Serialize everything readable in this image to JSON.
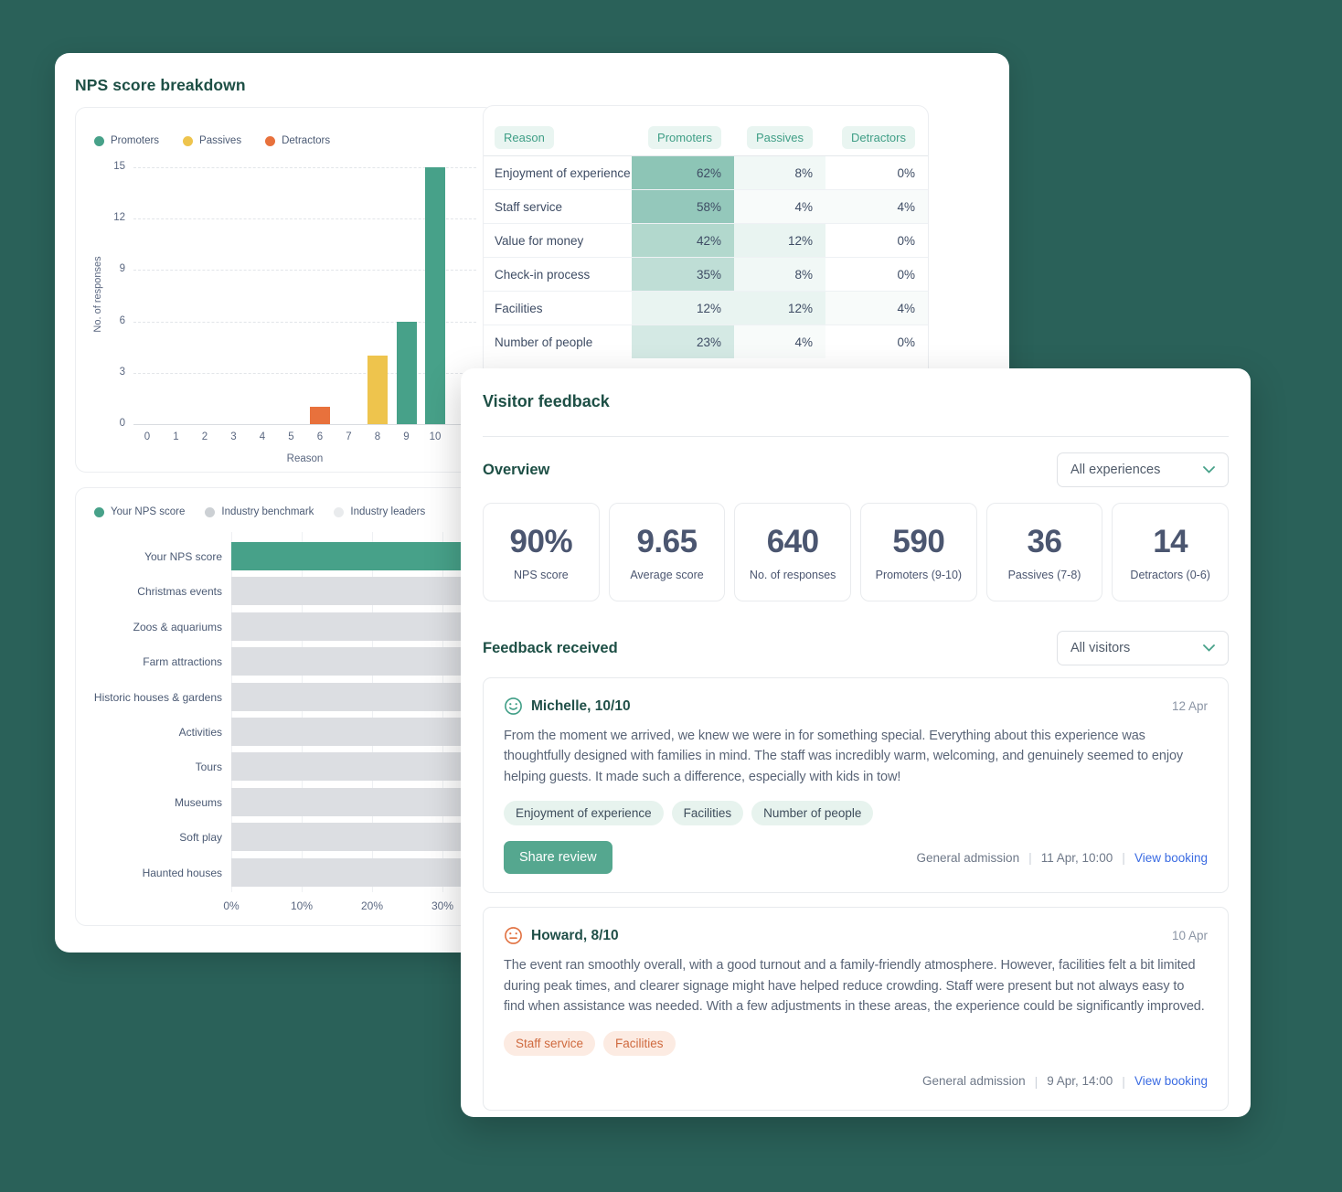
{
  "colors": {
    "background": "#2a6159",
    "heading": "#1d4f45",
    "promoters": "#47a189",
    "passives": "#eec44d",
    "detractors": "#e8713c",
    "benchmark_bar": "#dcdee2",
    "table_cell_base_rgb": "71,161,137",
    "link": "#3a6be2",
    "share_button": "#55a78f"
  },
  "nps_card": {
    "title": "NPS score breakdown"
  },
  "chart_data": [
    {
      "id": "nps_breakdown",
      "type": "bar",
      "title": "",
      "xlabel": "Reason",
      "ylabel": "No. of responses",
      "xticks": [
        "0",
        "1",
        "2",
        "3",
        "4",
        "5",
        "6",
        "7",
        "8",
        "9",
        "10"
      ],
      "yticks": [
        15,
        12,
        9,
        6,
        3,
        0
      ],
      "ylim": [
        0,
        15
      ],
      "values": [
        0,
        0,
        0,
        0,
        0,
        0,
        1,
        0,
        4,
        6,
        15
      ],
      "colors_by_x": {
        "6": "#e8713c",
        "8": "#eec44d",
        "9": "#47a189",
        "10": "#47a189"
      },
      "legend": [
        {
          "label": "Promoters",
          "color": "#47a189"
        },
        {
          "label": "Passives",
          "color": "#eec44d"
        },
        {
          "label": "Detractors",
          "color": "#e8713c"
        }
      ],
      "grid": "dashed horizontal"
    },
    {
      "id": "industry_benchmark",
      "type": "bar-horizontal",
      "title": "",
      "xticks": [
        "0%",
        "10%",
        "20%",
        "30%"
      ],
      "categories": [
        "Your NPS score",
        "Christmas events",
        "Zoos & aquariums",
        "Farm attractions",
        "Historic houses & gardens",
        "Activities",
        "Tours",
        "Museums",
        "Soft play",
        "Haunted houses"
      ],
      "legend": [
        {
          "label": "Your NPS score",
          "color": "#47a189"
        },
        {
          "label": "Industry benchmark",
          "color": "#ccd0d4"
        },
        {
          "label": "Industry leaders",
          "color": "#e9ebed"
        }
      ],
      "bar_color_default": "#dcdee2",
      "note": "all bars extend past 30% and are clipped by the overlapping Visitor feedback card"
    }
  ],
  "table": {
    "columns": [
      "Reason",
      "Promoters",
      "Passives",
      "Detractors"
    ],
    "rows": [
      {
        "reason": "Enjoyment of experience",
        "promoters": 62,
        "passives": 8,
        "detractors": 0
      },
      {
        "reason": "Staff service",
        "promoters": 58,
        "passives": 4,
        "detractors": 4
      },
      {
        "reason": "Value for money",
        "promoters": 42,
        "passives": 12,
        "detractors": 0
      },
      {
        "reason": "Check-in process",
        "promoters": 35,
        "passives": 8,
        "detractors": 0
      },
      {
        "reason": "Facilities",
        "promoters": 12,
        "passives": 12,
        "detractors": 4
      },
      {
        "reason": "Number of people",
        "promoters": 23,
        "passives": 4,
        "detractors": 0
      }
    ]
  },
  "feedback_panel": {
    "title": "Visitor feedback",
    "overview_heading": "Overview",
    "experiences_dropdown": "All experiences",
    "stats": [
      {
        "value": "90%",
        "label": "NPS score"
      },
      {
        "value": "9.65",
        "label": "Average score"
      },
      {
        "value": "640",
        "label": "No. of responses"
      },
      {
        "value": "590",
        "label": "Promoters (9-10)"
      },
      {
        "value": "36",
        "label": "Passives (7-8)"
      },
      {
        "value": "14",
        "label": "Detractors (0-6)"
      }
    ],
    "received_heading": "Feedback received",
    "visitors_dropdown": "All visitors",
    "reviews": [
      {
        "icon": "smiley-face-icon",
        "icon_color": "#3f9e86",
        "name": "Michelle, 10/10",
        "date": "12 Apr",
        "body": "From the moment we arrived, we knew we were in for something special. Everything about this experience was thoughtfully designed with families in mind. The staff was incredibly warm, welcoming, and genuinely seemed to enjoy helping guests. It made such a difference, especially with kids in tow!",
        "tags": [
          "Enjoyment of experience",
          "Facilities",
          "Number of people"
        ],
        "tag_tone": "teal",
        "share_label": "Share review",
        "meta": {
          "experience": "General admission",
          "datetime": "11 Apr, 10:00",
          "link": "View booking"
        }
      },
      {
        "icon": "neutral-face-icon",
        "icon_color": "#e1703f",
        "name": "Howard, 8/10",
        "date": "10 Apr",
        "body": "The event ran smoothly overall, with a good turnout and a family-friendly atmosphere. However, facilities felt a bit limited during peak times, and clearer signage might have helped reduce crowding. Staff were present but not always easy to find when assistance was needed. With a few adjustments in these areas, the experience could be significantly improved.",
        "tags": [
          "Staff service",
          "Facilities"
        ],
        "tag_tone": "orange",
        "share_label": null,
        "meta": {
          "experience": "General admission",
          "datetime": "9 Apr, 14:00",
          "link": "View booking"
        }
      }
    ]
  }
}
